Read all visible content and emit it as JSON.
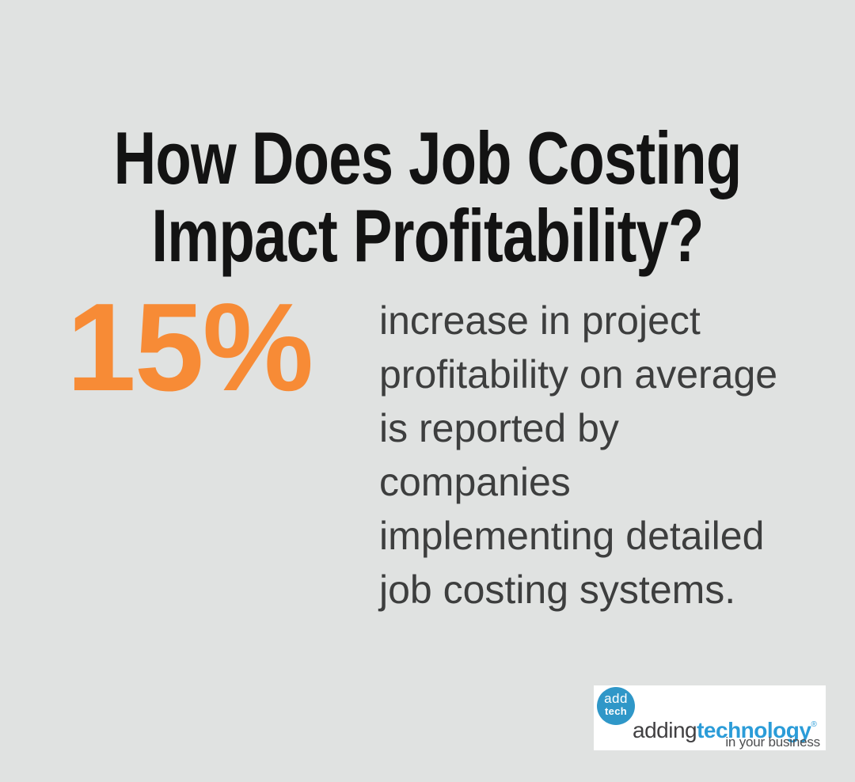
{
  "page": {
    "background_color": "#e0e2e1"
  },
  "heading": {
    "text": "How Does Job Costing\nImpact Profitability?",
    "color": "#131313"
  },
  "stat": {
    "value": "15%",
    "color": "#f78b36",
    "description": "increase in project\nprofitability on average\nis reported by\ncompanies\nimplementing detailed\njob costing systems."
  },
  "logo": {
    "badge_line1": "add",
    "badge_line2": "tech",
    "brand_part1": "adding",
    "brand_part2": "technology",
    "registered_mark": "®",
    "tagline": "in your business",
    "badge_color": "#2f97c8",
    "brand_blue": "#2b9cd8",
    "brand_dark": "#414042",
    "box_background": "#ffffff"
  }
}
